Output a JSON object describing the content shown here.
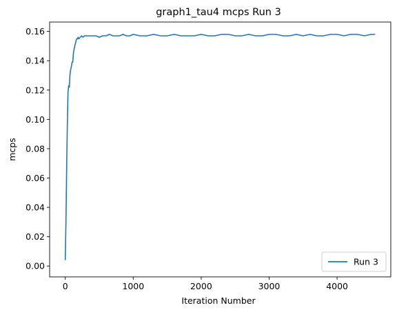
{
  "chart_data": {
    "type": "line",
    "title": "graph1_tau4 mcps Run 3",
    "xlabel": "Iteration Number",
    "ylabel": "mcps",
    "xlim": [
      -230,
      4790
    ],
    "ylim": [
      -0.0074,
      0.1664
    ],
    "xticks": [
      0,
      1000,
      2000,
      3000,
      4000
    ],
    "xtick_labels": [
      "0",
      "1000",
      "2000",
      "3000",
      "4000"
    ],
    "yticks": [
      0.0,
      0.02,
      0.04,
      0.06,
      0.08,
      0.1,
      0.12,
      0.14,
      0.16
    ],
    "ytick_labels": [
      "0.00",
      "0.02",
      "0.04",
      "0.06",
      "0.08",
      "0.10",
      "0.12",
      "0.14",
      "0.16"
    ],
    "grid": false,
    "legend_position": "lower-right",
    "series": [
      {
        "name": "Run 3",
        "color": "#1f77b4",
        "x": [
          0,
          10,
          20,
          30,
          40,
          50,
          60,
          70,
          80,
          90,
          100,
          110,
          120,
          130,
          140,
          150,
          160,
          170,
          180,
          190,
          200,
          220,
          240,
          260,
          280,
          300,
          350,
          400,
          450,
          500,
          550,
          600,
          650,
          700,
          750,
          800,
          850,
          900,
          950,
          1000,
          1100,
          1200,
          1300,
          1400,
          1500,
          1600,
          1700,
          1800,
          1900,
          2000,
          2100,
          2200,
          2300,
          2400,
          2500,
          2600,
          2700,
          2800,
          2900,
          3000,
          3100,
          3200,
          3300,
          3400,
          3500,
          3600,
          3700,
          3800,
          3900,
          4000,
          4100,
          4200,
          4300,
          4400,
          4500,
          4560
        ],
        "y": [
          0.004,
          0.03,
          0.065,
          0.095,
          0.118,
          0.123,
          0.122,
          0.131,
          0.134,
          0.136,
          0.139,
          0.139,
          0.145,
          0.148,
          0.15,
          0.152,
          0.154,
          0.155,
          0.155,
          0.156,
          0.155,
          0.156,
          0.157,
          0.156,
          0.157,
          0.157,
          0.157,
          0.157,
          0.157,
          0.156,
          0.157,
          0.157,
          0.158,
          0.157,
          0.157,
          0.157,
          0.158,
          0.157,
          0.157,
          0.158,
          0.157,
          0.157,
          0.158,
          0.157,
          0.157,
          0.158,
          0.157,
          0.157,
          0.157,
          0.158,
          0.157,
          0.157,
          0.158,
          0.158,
          0.157,
          0.157,
          0.158,
          0.157,
          0.157,
          0.158,
          0.158,
          0.157,
          0.157,
          0.158,
          0.157,
          0.158,
          0.157,
          0.157,
          0.158,
          0.158,
          0.157,
          0.158,
          0.158,
          0.157,
          0.158,
          0.158
        ]
      }
    ]
  }
}
